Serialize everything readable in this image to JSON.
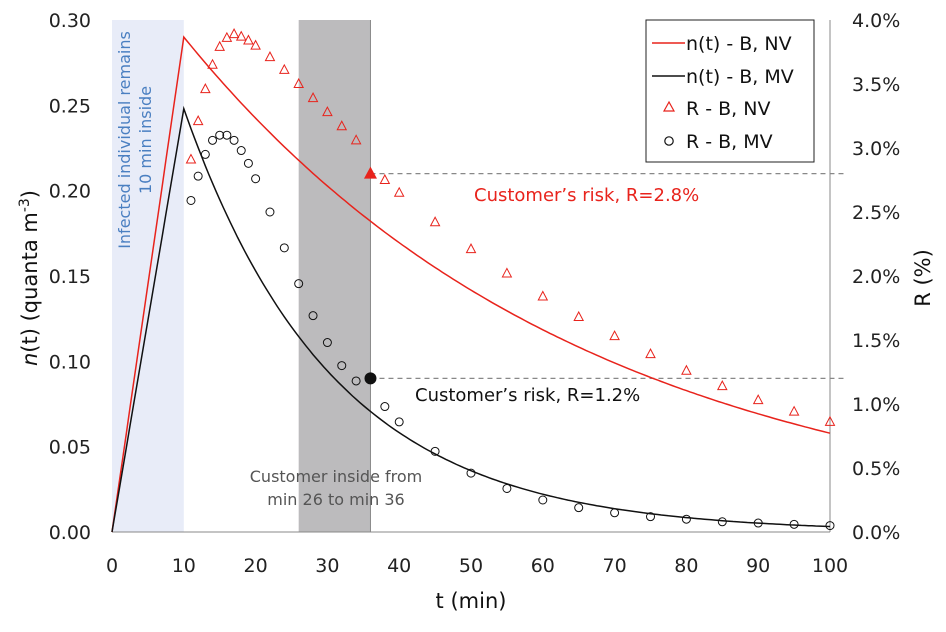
{
  "chart_data": {
    "type": "line",
    "xlabel": "t (min)",
    "ylabel_left": "(t) (quanta m",
    "ylabel_left_prefix": "n",
    "ylabel_left_suffix_sup": "-3",
    "ylabel_left_close": ")",
    "ylabel_right": "R (%)",
    "xlim": [
      0,
      100
    ],
    "ylim_left": [
      0,
      0.3
    ],
    "ylim_right": [
      0,
      4.0
    ],
    "x_ticks": [
      "0",
      "10",
      "20",
      "30",
      "40",
      "50",
      "60",
      "70",
      "80",
      "90",
      "100"
    ],
    "y_left_ticks": [
      "0.00",
      "0.05",
      "0.10",
      "0.15",
      "0.20",
      "0.25",
      "0.30"
    ],
    "y_right_ticks": [
      "0.0%",
      "0.5%",
      "1.0%",
      "1.5%",
      "2.0%",
      "2.5%",
      "3.0%",
      "3.5%",
      "4.0%"
    ],
    "series": [
      {
        "name": "n(t) - B, NV",
        "kind": "line",
        "axis": "left",
        "color": "#e8231c",
        "emission_end": 10,
        "peak": 0.29,
        "decay_rate": 0.0179
      },
      {
        "name": "n(t) - B, MV",
        "kind": "line",
        "axis": "left",
        "color": "#111111",
        "emission_end": 10,
        "peak": 0.248,
        "decay_rate": 0.0483
      },
      {
        "name": "R - B, NV",
        "kind": "triangle-markers",
        "axis": "right",
        "color": "#e8231c",
        "x": [
          11,
          12,
          13,
          14,
          15,
          16,
          17,
          18,
          19,
          20,
          22,
          24,
          26,
          28,
          30,
          32,
          34,
          36,
          38,
          40,
          45,
          50,
          55,
          60,
          65,
          70,
          75,
          80,
          85,
          90,
          95,
          100
        ],
        "values": [
          2.91,
          3.21,
          3.46,
          3.65,
          3.79,
          3.86,
          3.89,
          3.87,
          3.84,
          3.8,
          3.71,
          3.61,
          3.5,
          3.39,
          3.28,
          3.17,
          3.06,
          2.8,
          2.75,
          2.65,
          2.42,
          2.21,
          2.02,
          1.84,
          1.68,
          1.53,
          1.39,
          1.26,
          1.14,
          1.03,
          0.94,
          0.86
        ]
      },
      {
        "name": "R - B, MV",
        "kind": "circle-markers",
        "axis": "right",
        "color": "#111111",
        "x": [
          11,
          12,
          13,
          14,
          15,
          16,
          17,
          18,
          19,
          20,
          22,
          24,
          26,
          28,
          30,
          32,
          34,
          36,
          38,
          40,
          45,
          50,
          55,
          60,
          65,
          70,
          75,
          80,
          85,
          90,
          95,
          100
        ],
        "values": [
          2.59,
          2.78,
          2.95,
          3.06,
          3.1,
          3.1,
          3.06,
          2.98,
          2.88,
          2.76,
          2.5,
          2.22,
          1.94,
          1.69,
          1.48,
          1.3,
          1.18,
          1.2,
          0.98,
          0.86,
          0.63,
          0.46,
          0.34,
          0.25,
          0.19,
          0.15,
          0.12,
          0.1,
          0.08,
          0.07,
          0.06,
          0.05
        ]
      }
    ],
    "highlights": [
      {
        "x": 36,
        "value": 2.8,
        "color": "#e8231c",
        "marker": "triangle-filled"
      },
      {
        "x": 36,
        "value": 1.2,
        "color": "#111111",
        "marker": "circle-filled"
      }
    ],
    "risk_lines": [
      2.8,
      1.2
    ],
    "shaded_regions": [
      {
        "x0": 0,
        "x1": 10,
        "color": "#e8ecf8"
      },
      {
        "x0": 26,
        "x1": 36,
        "color": "#bcbbbd"
      }
    ],
    "annotations": {
      "nv_risk": "Customer’s risk, R=2.8%",
      "mv_risk": "Customer’s risk, R=1.2%",
      "customer_line1": "Customer inside from",
      "customer_line2": "min 26 to min 36",
      "infected_line1": "Infected individual remains",
      "infected_line2": "10 min inside"
    },
    "legend": [
      "n(t) - B, NV",
      "n(t) - B, MV",
      "R - B, NV",
      "R - B, MV"
    ],
    "legend_position": "top-right"
  }
}
